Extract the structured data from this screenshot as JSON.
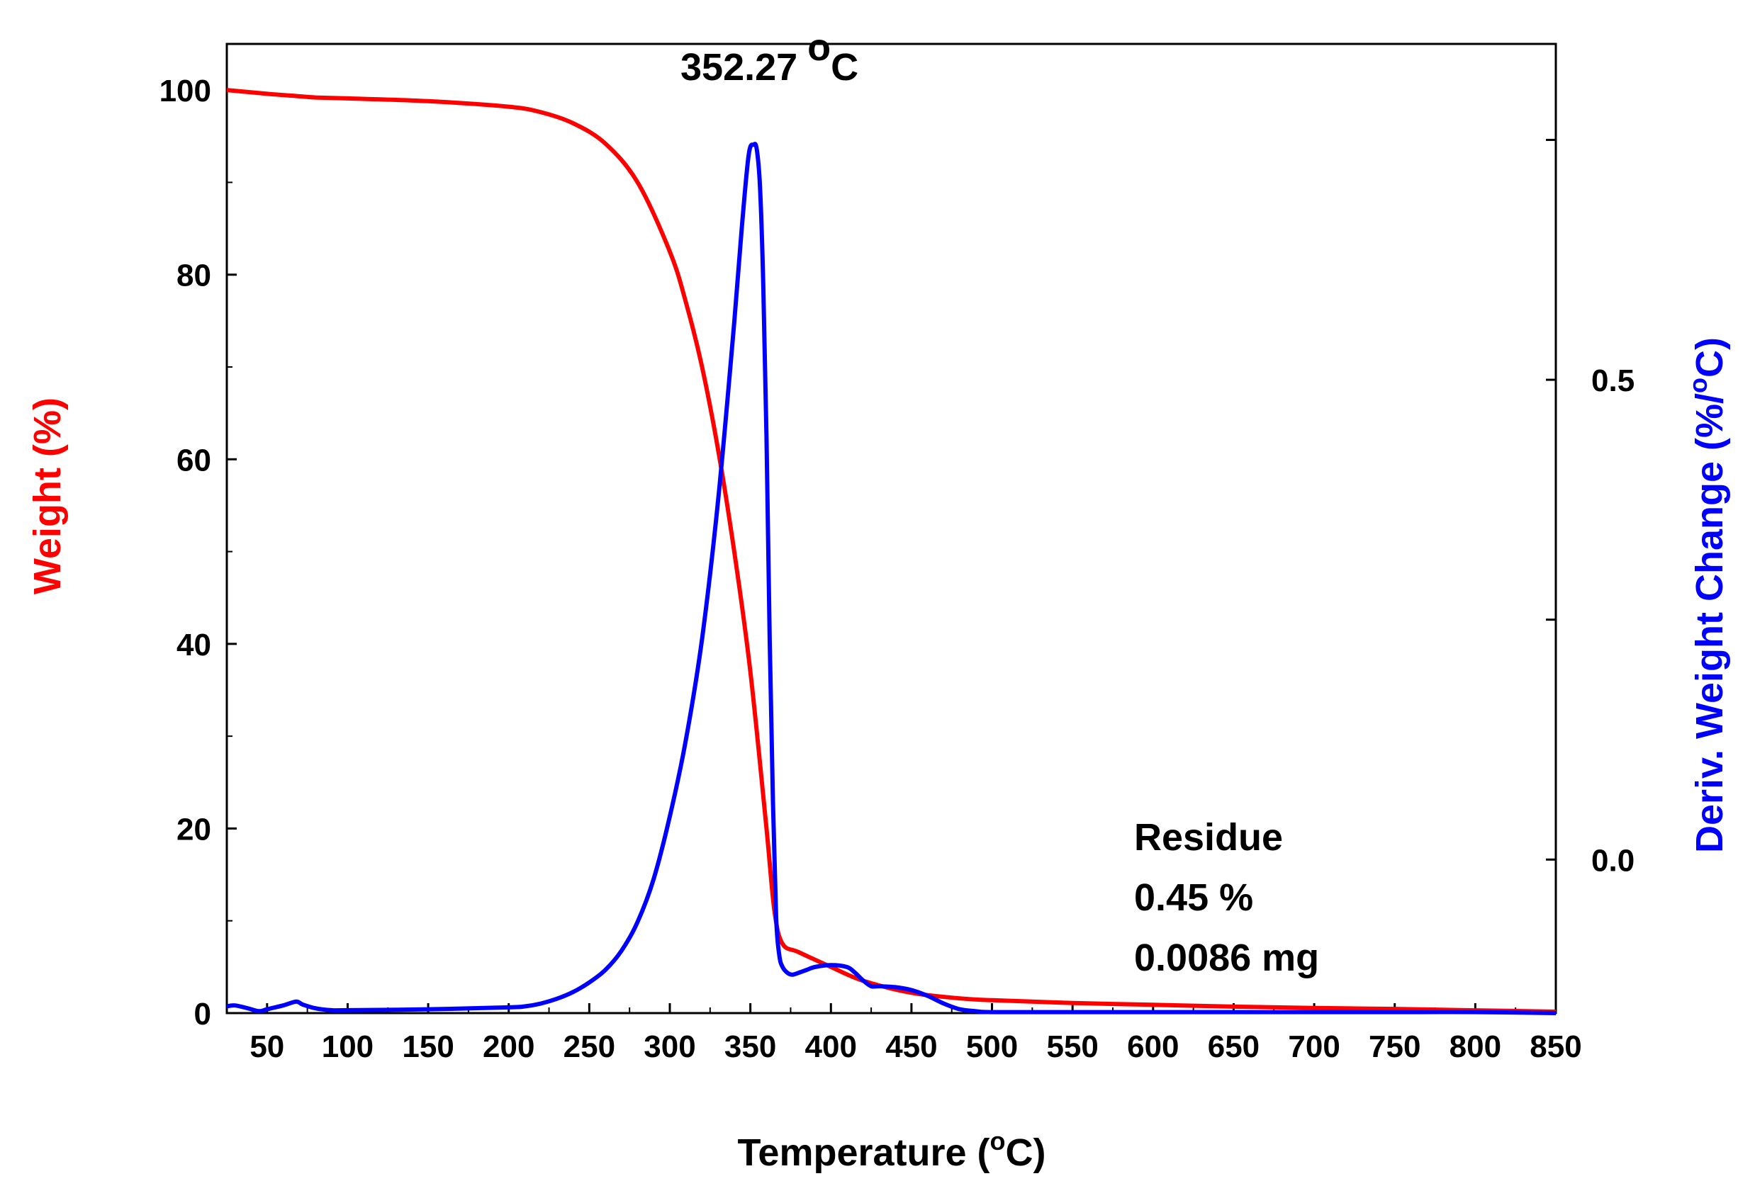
{
  "chart_data": {
    "type": "line",
    "title": "",
    "xlabel": "Temperature (",
    "xlabel_degree": "o",
    "xlabel_end": "C)",
    "ylabel_left": "Weight (%)",
    "ylabel_right": "Deriv. Weight Change (",
    "ylabel_right_pct": "%/",
    "ylabel_right_degree": "o",
    "ylabel_right_end": "C)",
    "xlim": [
      25,
      850
    ],
    "ylim_left": [
      0,
      105
    ],
    "ylim_right": [
      -0.16,
      0.85
    ],
    "x_ticks": [
      50,
      100,
      150,
      200,
      250,
      300,
      350,
      400,
      450,
      500,
      550,
      600,
      650,
      700,
      750,
      800,
      850
    ],
    "x_tick_labels": [
      "50",
      "100",
      "150",
      "200",
      "250",
      "300",
      "350",
      "400",
      "450",
      "500",
      "550",
      "600",
      "650",
      "700",
      "750",
      "800",
      "850"
    ],
    "y_left_ticks": [
      0,
      20,
      40,
      60,
      80,
      100
    ],
    "y_left_tick_labels": [
      "0",
      "20",
      "40",
      "60",
      "80",
      "100"
    ],
    "y_right_ticks": [
      0.0,
      0.5
    ],
    "y_right_tick_labels": [
      "0.0",
      "0.5"
    ],
    "y_right_minor_ticks": [
      -0.25,
      0.25,
      0.75
    ],
    "series": [
      {
        "name": "Weight (%)",
        "axis": "left",
        "color": "#ff0000",
        "x": [
          25,
          50,
          65,
          80,
          100,
          150,
          200,
          220,
          240,
          260,
          280,
          300,
          310,
          320,
          330,
          340,
          350,
          360,
          365,
          370,
          380,
          400,
          420,
          450,
          480,
          500,
          550,
          600,
          650,
          700,
          750,
          800,
          850
        ],
        "y": [
          100,
          99.6,
          99.4,
          99.2,
          99.1,
          98.8,
          98.2,
          97.6,
          96.4,
          94.2,
          90.0,
          82.5,
          77.0,
          70.0,
          61.0,
          50.0,
          37.0,
          20.0,
          11.0,
          7.5,
          6.6,
          5.0,
          3.5,
          2.2,
          1.6,
          1.4,
          1.1,
          0.9,
          0.7,
          0.55,
          0.45,
          0.3,
          0.15
        ]
      },
      {
        "name": "Deriv. Weight Change (%/oC)",
        "axis": "right",
        "color": "#0000ff",
        "x": [
          25,
          30,
          38,
          45,
          50,
          60,
          68,
          72,
          80,
          90,
          100,
          150,
          200,
          210,
          220,
          230,
          240,
          250,
          260,
          270,
          280,
          290,
          300,
          310,
          320,
          330,
          340,
          345,
          349,
          352,
          354,
          356,
          358,
          360,
          362,
          364,
          366,
          368,
          370,
          373,
          376,
          380,
          385,
          390,
          400,
          410,
          415,
          420,
          425,
          430,
          440,
          450,
          460,
          470,
          480,
          490,
          500,
          550,
          600,
          650,
          700,
          750,
          800,
          850
        ],
        "y": [
          -0.153,
          -0.152,
          -0.155,
          -0.158,
          -0.156,
          -0.152,
          -0.148,
          -0.151,
          -0.155,
          -0.157,
          -0.157,
          -0.156,
          -0.154,
          -0.153,
          -0.15,
          -0.145,
          -0.138,
          -0.128,
          -0.115,
          -0.095,
          -0.065,
          -0.02,
          0.045,
          0.125,
          0.23,
          0.375,
          0.56,
          0.665,
          0.735,
          0.745,
          0.74,
          0.7,
          0.6,
          0.44,
          0.23,
          0.06,
          -0.06,
          -0.1,
          -0.112,
          -0.118,
          -0.12,
          -0.118,
          -0.115,
          -0.112,
          -0.11,
          -0.112,
          -0.118,
          -0.126,
          -0.132,
          -0.132,
          -0.133,
          -0.136,
          -0.142,
          -0.15,
          -0.156,
          -0.158,
          -0.159,
          -0.159,
          -0.159,
          -0.159,
          -0.159,
          -0.159,
          -0.159,
          -0.16
        ]
      }
    ],
    "annotations": {
      "peak_label": "352.27",
      "peak_degree": "o",
      "peak_unit": "C",
      "residue_title": "Residue",
      "residue_percent": "0.45 %",
      "residue_mass": "0.0086 mg"
    }
  },
  "colors": {
    "weight": "#ff0000",
    "deriv": "#0000ff",
    "axis": "#000000"
  }
}
